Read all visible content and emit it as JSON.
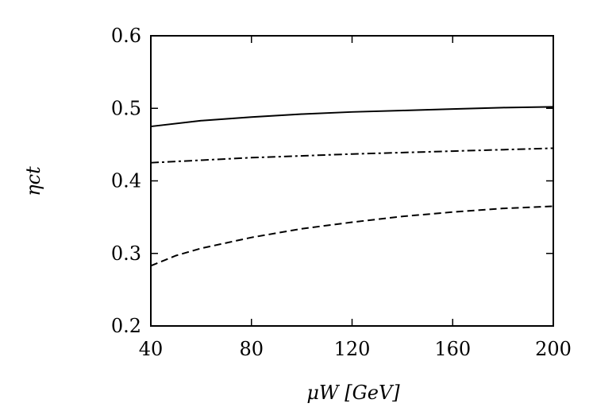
{
  "chart_data": {
    "type": "line",
    "x_label": "μW [GeV]",
    "y_label": "ηct",
    "xlim": [
      40,
      200
    ],
    "xticks": [
      40,
      80,
      120,
      160,
      200
    ],
    "ylim": [
      0.2,
      0.6
    ],
    "yticks": [
      0.2,
      0.3,
      0.4,
      0.5,
      0.6
    ],
    "grid": false,
    "series": [
      {
        "color": "#000000",
        "dash": "solid",
        "x": [
          40,
          60,
          80,
          100,
          120,
          140,
          160,
          180,
          200
        ],
        "values": [
          0.475,
          0.483,
          0.488,
          0.492,
          0.495,
          0.497,
          0.499,
          0.501,
          0.502
        ]
      },
      {
        "color": "#000000",
        "dash": "dashdot",
        "x": [
          40,
          80,
          120,
          160,
          200
        ],
        "values": [
          0.425,
          0.432,
          0.437,
          0.441,
          0.445
        ]
      },
      {
        "color": "#000000",
        "dash": "dashed",
        "x": [
          40,
          50,
          60,
          80,
          100,
          120,
          140,
          160,
          180,
          200
        ],
        "values": [
          0.283,
          0.297,
          0.307,
          0.322,
          0.334,
          0.343,
          0.351,
          0.357,
          0.362,
          0.365
        ]
      }
    ]
  }
}
